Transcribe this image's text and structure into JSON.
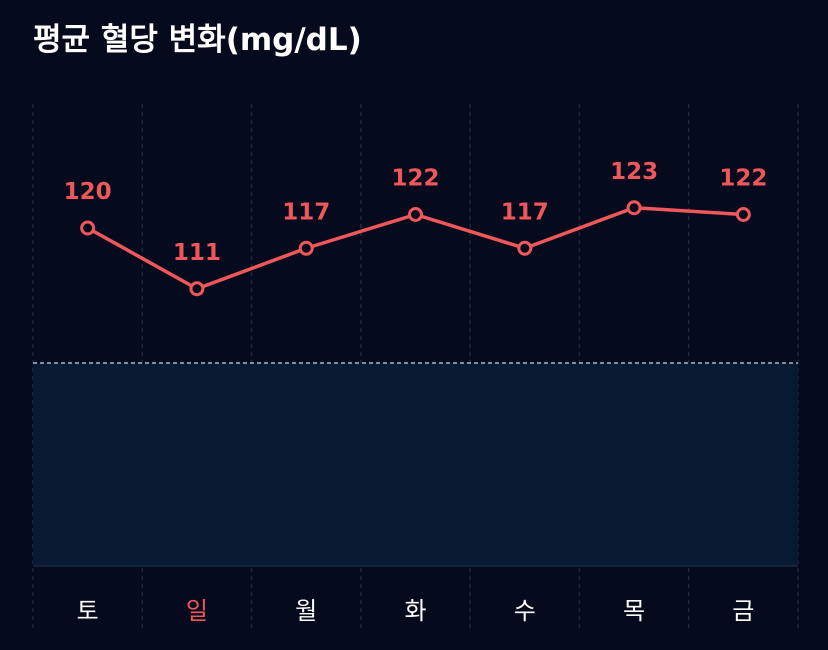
{
  "title": "평균 혈당 변화(mg/dL)",
  "colors": {
    "background": "#050a1c",
    "line": "#f0575a",
    "grid": "#1c2942",
    "band_fill": "#071a31",
    "band_border": "#a9b6c9",
    "label_default": "#ffffff",
    "label_highlight": "#f0575a"
  },
  "chart_data": {
    "type": "line",
    "title": "평균 혈당 변화(mg/dL)",
    "categories": [
      "토",
      "일",
      "월",
      "화",
      "수",
      "목",
      "금"
    ],
    "highlight_category": "일",
    "series": [
      {
        "values": [
          120,
          111,
          117,
          122,
          117,
          123,
          122
        ],
        "data_labels": [
          "120",
          "111",
          "117",
          "122",
          "117",
          "123",
          "122"
        ]
      }
    ],
    "target_band": [
      80,
      100
    ],
    "ylim": [
      80,
      135
    ],
    "grid": "vertical-dashed"
  }
}
